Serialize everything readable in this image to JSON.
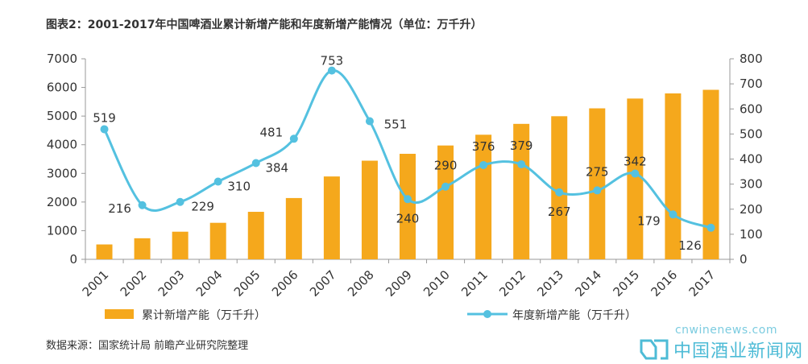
{
  "title": "图表2：2001-2017年中国啤酒业累计新增产能和年度新增产能情况（单位：万千升）",
  "source": "数据来源：国家统计局 前瞻产业研究院整理",
  "watermark": {
    "url": "cnwinenews.com",
    "name": "中国酒业新闻网"
  },
  "colors": {
    "bar": "#F5A81C",
    "line": "#54C1E0"
  },
  "chart_data": {
    "type": "bar+line",
    "categories": [
      "2001",
      "2002",
      "2003",
      "2004",
      "2005",
      "2006",
      "2007",
      "2008",
      "2009",
      "2010",
      "2011",
      "2012",
      "2013",
      "2014",
      "2015",
      "2016",
      "2017"
    ],
    "series": [
      {
        "name": "累计新增产能（万千升）",
        "type": "bar",
        "axis": "left",
        "values": [
          519,
          735,
          964,
          1274,
          1658,
          2139,
          2892,
          3443,
          3683,
          3973,
          4349,
          4728,
          4995,
          5270,
          5612,
          5791,
          5917
        ]
      },
      {
        "name": "年度新增产能（万千升）",
        "type": "line",
        "axis": "right",
        "values": [
          519,
          216,
          229,
          310,
          384,
          481,
          753,
          551,
          240,
          290,
          376,
          379,
          267,
          275,
          342,
          179,
          126
        ]
      }
    ],
    "y_left": {
      "range": [
        0,
        7000
      ],
      "ticks": [
        0,
        1000,
        2000,
        3000,
        4000,
        5000,
        6000,
        7000
      ]
    },
    "y_right": {
      "range": [
        0,
        800
      ],
      "ticks": [
        0,
        100,
        200,
        300,
        400,
        500,
        600,
        700,
        800
      ]
    },
    "grid": false,
    "legend_position": "bottom"
  }
}
